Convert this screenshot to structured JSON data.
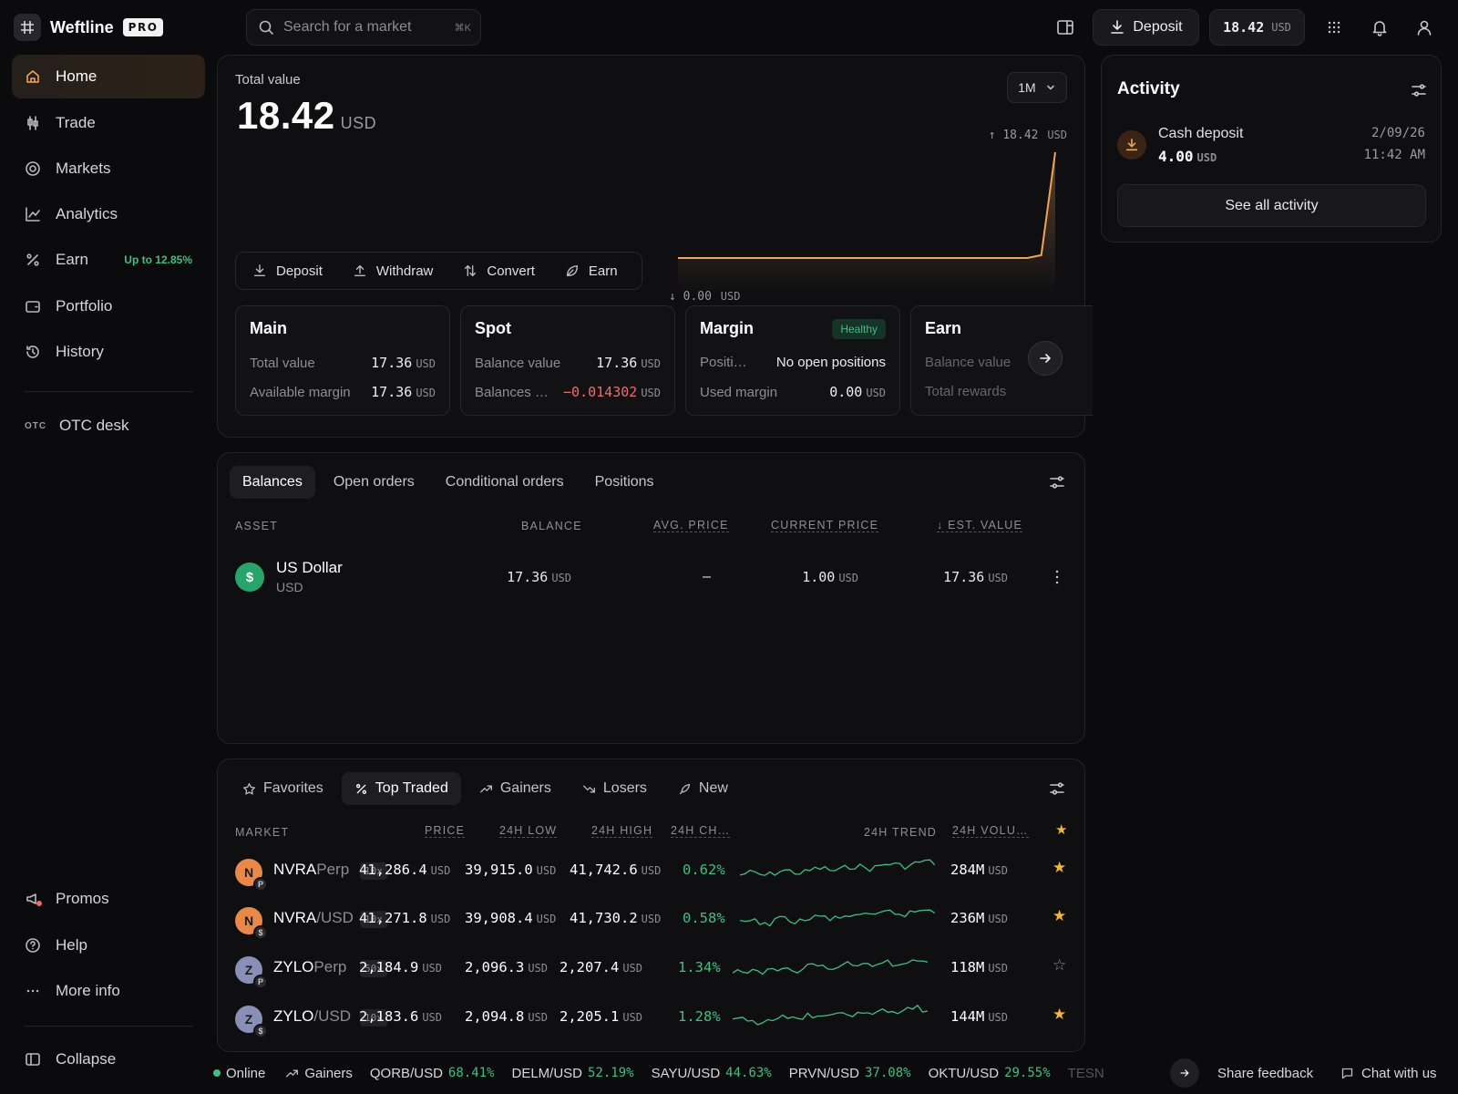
{
  "brand": {
    "name": "Weftline",
    "badge": "PRO"
  },
  "sidebar": {
    "items": [
      {
        "label": "Home",
        "icon": "home-icon"
      },
      {
        "label": "Trade",
        "icon": "candlestick-icon"
      },
      {
        "label": "Markets",
        "icon": "target-icon"
      },
      {
        "label": "Analytics",
        "icon": "line-chart-icon"
      },
      {
        "label": "Earn",
        "icon": "percent-icon",
        "badge": "Up to 12.85%"
      },
      {
        "label": "Portfolio",
        "icon": "wallet-icon"
      },
      {
        "label": "History",
        "icon": "history-icon"
      }
    ],
    "otc": {
      "tag": "OTC",
      "label": "OTC desk"
    },
    "bottom": [
      {
        "label": "Promos",
        "icon": "megaphone-icon"
      },
      {
        "label": "Help",
        "icon": "help-icon"
      },
      {
        "label": "More info",
        "icon": "more-icon"
      }
    ],
    "collapse": "Collapse"
  },
  "topbar": {
    "search_placeholder": "Search for a market",
    "search_kbd": "⌘K",
    "deposit": "Deposit",
    "balance_value": "18.42",
    "balance_unit": "USD"
  },
  "overview": {
    "label": "Total value",
    "value": "18.42",
    "unit": "USD",
    "range": "1M",
    "chart_high": "18.42",
    "chart_low": "0.00",
    "chart_unit": "USD",
    "actions": [
      "Deposit",
      "Withdraw",
      "Convert",
      "Earn"
    ]
  },
  "chart_data": {
    "type": "area",
    "title": "",
    "xlabel": "",
    "ylabel": "",
    "y": [
      0,
      0,
      0,
      0,
      0,
      0,
      0,
      0,
      0,
      0,
      0,
      0,
      0,
      0,
      0,
      0,
      0,
      0,
      0,
      0,
      0,
      0,
      0,
      0,
      0,
      0,
      0.5,
      18.42
    ],
    "ylim": [
      0,
      18.42
    ],
    "color": "#f0a35a"
  },
  "accounts": [
    {
      "title": "Main",
      "rows": [
        {
          "k": "Total value",
          "v": "17.36",
          "u": "USD"
        },
        {
          "k": "Available margin",
          "v": "17.36",
          "u": "USD"
        }
      ]
    },
    {
      "title": "Spot",
      "rows": [
        {
          "k": "Balance value",
          "v": "17.36",
          "u": "USD"
        },
        {
          "k": "Balances …",
          "v": "−0.014302",
          "u": "USD"
        }
      ]
    },
    {
      "title": "Margin",
      "badge": "Healthy",
      "rows": [
        {
          "k": "Positi…",
          "v": "No open positions",
          "u": ""
        },
        {
          "k": "Used margin",
          "v": "0.00",
          "u": "USD"
        }
      ]
    },
    {
      "title": "Earn",
      "rows": [
        {
          "k": "Balance value",
          "v": "",
          "u": ""
        },
        {
          "k": "Total rewards",
          "v": "",
          "u": ""
        }
      ]
    }
  ],
  "balances": {
    "tabs": [
      "Balances",
      "Open orders",
      "Conditional orders",
      "Positions"
    ],
    "headers": [
      "ASSET",
      "BALANCE",
      "AVG. PRICE",
      "CURRENT PRICE",
      "EST. VALUE"
    ],
    "rows": [
      {
        "icon": "$",
        "name": "US Dollar",
        "code": "USD",
        "balance": "17.36",
        "unit": "USD",
        "avg": "–",
        "current": "1.00",
        "est": "17.36"
      }
    ]
  },
  "markets": {
    "tabs": [
      "Favorites",
      "Top Traded",
      "Gainers",
      "Losers",
      "New"
    ],
    "headers": [
      "MARKET",
      "PRICE",
      "24H LOW",
      "24H HIGH",
      "24H CH…",
      "24H TREND",
      "24H VOLU…"
    ],
    "unit": "USD",
    "rows": [
      {
        "letter": "N",
        "sub": "P",
        "name": "NVRA",
        "suffix": "Perp",
        "lev": "10x",
        "price": "41,286.4",
        "low": "39,915.0",
        "high": "41,742.6",
        "change": "0.62%",
        "vol": "284M",
        "fav": true,
        "color": "#e8894a"
      },
      {
        "letter": "N",
        "sub": "$",
        "name": "NVRA",
        "suffix": "/USD",
        "lev": "10x",
        "price": "41,271.8",
        "low": "39,908.4",
        "high": "41,730.2",
        "change": "0.58%",
        "vol": "236M",
        "fav": true,
        "color": "#e8894a"
      },
      {
        "letter": "Z",
        "sub": "P",
        "name": "ZYLO",
        "suffix": "Perp",
        "lev": "50x",
        "price": "2,184.9",
        "low": "2,096.3",
        "high": "2,207.4",
        "change": "1.34%",
        "vol": "118M",
        "fav": false,
        "color": "#8a8fb8"
      },
      {
        "letter": "Z",
        "sub": "$",
        "name": "ZYLO",
        "suffix": "/USD",
        "lev": "10x",
        "price": "2,183.6",
        "low": "2,094.8",
        "high": "2,205.1",
        "change": "1.28%",
        "vol": "144M",
        "fav": true,
        "color": "#8a8fb8"
      }
    ]
  },
  "activity": {
    "title": "Activity",
    "items": [
      {
        "type": "Cash deposit",
        "amount": "4.00",
        "unit": "USD",
        "date": "2/09/26",
        "time": "11:42 AM"
      }
    ],
    "see_all": "See all activity"
  },
  "footer": {
    "status": "Online",
    "gainers_label": "Gainers",
    "tickers": [
      {
        "pair": "QORB/USD",
        "change": "68.41%"
      },
      {
        "pair": "DELM/USD",
        "change": "52.19%"
      },
      {
        "pair": "SAYU/USD",
        "change": "44.63%"
      },
      {
        "pair": "PRVN/USD",
        "change": "37.08%"
      },
      {
        "pair": "OKTU/USD",
        "change": "29.55%"
      },
      {
        "pair": "TESN",
        "change": ""
      }
    ],
    "feedback": "Share feedback",
    "chat": "Chat with us"
  },
  "colors": {
    "accent": "#f0a35a",
    "positive": "#3fbf82",
    "negative": "#f06a6a",
    "background": "#0b0b0d"
  }
}
